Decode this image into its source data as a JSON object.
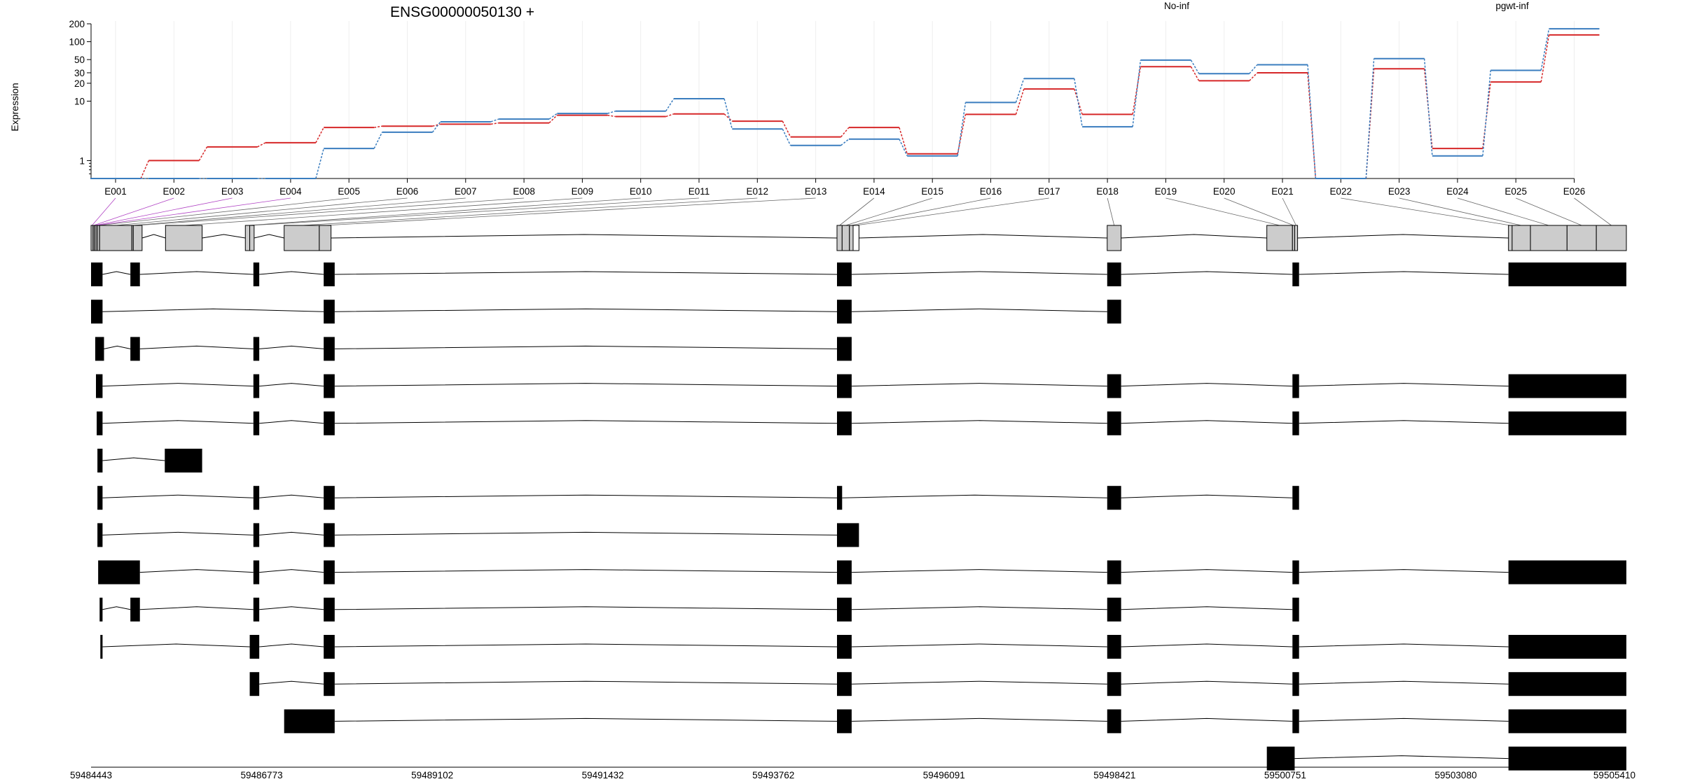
{
  "chart_data": {
    "type": "line",
    "title": "ENSG00000050130 +",
    "ylabel": "Expression",
    "yscale": "log",
    "ylim": [
      0.5,
      200
    ],
    "ytick_labels": [
      "1",
      "10",
      "20",
      "30",
      "50",
      "100",
      "200"
    ],
    "legend_placement": "top",
    "grid": true,
    "x": [
      "E001",
      "E002",
      "E003",
      "E004",
      "E005",
      "E006",
      "E007",
      "E008",
      "E009",
      "E010",
      "E011",
      "E012",
      "E013",
      "E014",
      "E015",
      "E016",
      "E017",
      "E018",
      "E019",
      "E020",
      "E021",
      "E022",
      "E023",
      "E024",
      "E025",
      "E026"
    ],
    "series": [
      {
        "name": "No-inf",
        "color": "#d62728",
        "values": [
          0.5,
          1.0,
          1.7,
          2.0,
          3.6,
          3.8,
          4.1,
          4.3,
          5.8,
          5.5,
          6.1,
          4.6,
          2.5,
          3.6,
          1.3,
          6.0,
          16.0,
          6.0,
          38.0,
          22.0,
          30.0,
          0.5,
          35.0,
          1.6,
          21.0,
          130.0
        ]
      },
      {
        "name": "pgwt-inf",
        "color": "#3a7dbf",
        "values": [
          0.5,
          0.5,
          0.5,
          0.5,
          1.6,
          3.0,
          4.5,
          5.0,
          6.2,
          6.8,
          11.0,
          3.4,
          1.8,
          2.3,
          1.2,
          9.5,
          24.0,
          3.7,
          49.0,
          29.0,
          41.0,
          0.5,
          52.0,
          1.2,
          33.0,
          165.0
        ]
      }
    ],
    "genomic_axis": {
      "tick_labels": [
        "59484443",
        "59486773",
        "59489102",
        "59491432",
        "59493762",
        "59496091",
        "59498421",
        "59500751",
        "59503080",
        "59505410"
      ],
      "range": [
        59484443,
        59505410
      ]
    },
    "exons": [
      {
        "id": "E001",
        "start": 59484443,
        "end": 59484470
      },
      {
        "id": "E002",
        "start": 59484470,
        "end": 59484488
      },
      {
        "id": "E003",
        "start": 59484488,
        "end": 59484510
      },
      {
        "id": "E004",
        "start": 59484510,
        "end": 59484530
      },
      {
        "id": "E005",
        "start": 59484530,
        "end": 59484560
      },
      {
        "id": "E006",
        "start": 59484560,
        "end": 59485000
      },
      {
        "id": "E007",
        "start": 59485000,
        "end": 59485020
      },
      {
        "id": "E008",
        "start": 59485020,
        "end": 59485140
      },
      {
        "id": "E009",
        "start": 59485460,
        "end": 59485960
      },
      {
        "id": "E010",
        "start": 59486550,
        "end": 59486610
      },
      {
        "id": "E011",
        "start": 59486610,
        "end": 59486670
      },
      {
        "id": "E012",
        "start": 59487080,
        "end": 59487560
      },
      {
        "id": "E013",
        "start": 59487560,
        "end": 59487720
      },
      {
        "id": "E014",
        "start": 59494630,
        "end": 59494700
      },
      {
        "id": "E015",
        "start": 59494700,
        "end": 59494800
      },
      {
        "id": "E016",
        "start": 59494800,
        "end": 59494850
      },
      {
        "id": "E017",
        "start": 59494850,
        "end": 59494930
      },
      {
        "id": "E018",
        "start": 59498320,
        "end": 59498510
      },
      {
        "id": "E019",
        "start": 59500500,
        "end": 59500850
      },
      {
        "id": "E020",
        "start": 59500850,
        "end": 59500880
      },
      {
        "id": "E021",
        "start": 59500880,
        "end": 59500920
      },
      {
        "id": "E022",
        "start": 59503800,
        "end": 59503850
      },
      {
        "id": "E023",
        "start": 59503850,
        "end": 59504100
      },
      {
        "id": "E024",
        "start": 59504100,
        "end": 59504600
      },
      {
        "id": "E025",
        "start": 59504600,
        "end": 59505000
      },
      {
        "id": "E026",
        "start": 59505000,
        "end": 59505410
      }
    ],
    "transcripts": [
      [
        [
          59484443,
          59484600
        ],
        [
          59484980,
          59485110
        ],
        [
          59486660,
          59486740
        ],
        [
          59487620,
          59487770
        ],
        [
          59494630,
          59494830
        ],
        [
          59498320,
          59498510
        ],
        [
          59500850,
          59500940
        ],
        [
          59503800,
          59505410
        ]
      ],
      [
        [
          59484443,
          59484600
        ],
        [
          59487620,
          59487770
        ],
        [
          59494630,
          59494830
        ],
        [
          59498320,
          59498510
        ]
      ],
      [
        [
          59484500,
          59484620
        ],
        [
          59484980,
          59485110
        ],
        [
          59486660,
          59486740
        ],
        [
          59487620,
          59487770
        ],
        [
          59494630,
          59494830
        ]
      ],
      [
        [
          59484510,
          59484600
        ],
        [
          59486660,
          59486740
        ],
        [
          59487620,
          59487770
        ],
        [
          59494630,
          59494830
        ],
        [
          59498320,
          59498510
        ],
        [
          59500850,
          59500940
        ],
        [
          59503800,
          59505410
        ]
      ],
      [
        [
          59484520,
          59484600
        ],
        [
          59486660,
          59486740
        ],
        [
          59487620,
          59487770
        ],
        [
          59494630,
          59494830
        ],
        [
          59498320,
          59498510
        ],
        [
          59500850,
          59500940
        ],
        [
          59503800,
          59505410
        ]
      ],
      [
        [
          59484530,
          59484600
        ],
        [
          59485450,
          59485960
        ]
      ],
      [
        [
          59484530,
          59484600
        ],
        [
          59486660,
          59486740
        ],
        [
          59487620,
          59487770
        ],
        [
          59494630,
          59494700
        ],
        [
          59498320,
          59498510
        ],
        [
          59500850,
          59500940
        ]
      ],
      [
        [
          59484530,
          59484600
        ],
        [
          59486660,
          59486740
        ],
        [
          59487620,
          59487770
        ],
        [
          59494630,
          59494930
        ]
      ],
      [
        [
          59484540,
          59485110
        ],
        [
          59486660,
          59486740
        ],
        [
          59487620,
          59487770
        ],
        [
          59494630,
          59494830
        ],
        [
          59498320,
          59498510
        ],
        [
          59500850,
          59500940
        ],
        [
          59503800,
          59505410
        ]
      ],
      [
        [
          59484560,
          59484600
        ],
        [
          59484980,
          59485110
        ],
        [
          59486660,
          59486740
        ],
        [
          59487620,
          59487770
        ],
        [
          59494630,
          59494830
        ],
        [
          59498320,
          59498510
        ],
        [
          59500850,
          59500940
        ]
      ],
      [
        [
          59484570,
          59484600
        ],
        [
          59486610,
          59486740
        ],
        [
          59487620,
          59487770
        ],
        [
          59494630,
          59494830
        ],
        [
          59498320,
          59498510
        ],
        [
          59500850,
          59500940
        ],
        [
          59503800,
          59505410
        ]
      ],
      [
        [
          59486610,
          59486740
        ],
        [
          59487620,
          59487770
        ],
        [
          59494630,
          59494830
        ],
        [
          59498320,
          59498510
        ],
        [
          59500850,
          59500940
        ],
        [
          59503800,
          59505410
        ]
      ],
      [
        [
          59487080,
          59487770
        ],
        [
          59494630,
          59494830
        ],
        [
          59498320,
          59498510
        ],
        [
          59500850,
          59500940
        ],
        [
          59503800,
          59505410
        ]
      ],
      [
        [
          59500500,
          59500880
        ],
        [
          59503800,
          59505410
        ]
      ]
    ]
  }
}
